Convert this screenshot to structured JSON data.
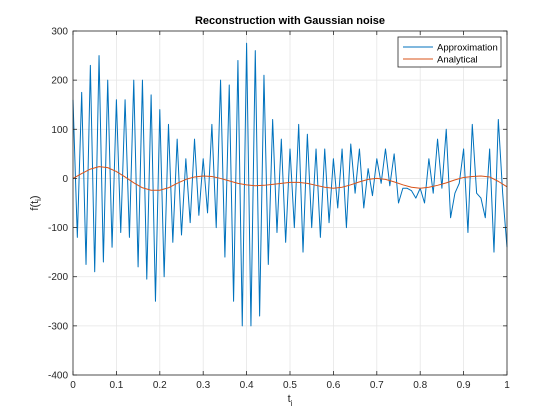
{
  "chart_data": {
    "type": "line",
    "title": "Reconstruction with Gaussian noise",
    "xlabel_main": "t",
    "xlabel_sub": "i",
    "ylabel_main": "f(t",
    "ylabel_sub": "i",
    "ylabel_close": ")",
    "xlim": [
      0,
      1
    ],
    "ylim": [
      -400,
      300
    ],
    "xticks": [
      0,
      0.1,
      0.2,
      0.3,
      0.4,
      0.5,
      0.6,
      0.7,
      0.8,
      0.9,
      1
    ],
    "xtick_labels": [
      "0",
      "0.1",
      "0.2",
      "0.3",
      "0.4",
      "0.5",
      "0.6",
      "0.7",
      "0.8",
      "0.9",
      "1"
    ],
    "yticks": [
      -400,
      -300,
      -200,
      -100,
      0,
      100,
      200,
      300
    ],
    "ytick_labels": [
      "-400",
      "-300",
      "-200",
      "-100",
      "0",
      "100",
      "200",
      "300"
    ],
    "grid": true,
    "legend_position": "top-right",
    "series": [
      {
        "name": "Approximation",
        "color": "#0072BD",
        "x": [
          0.0,
          0.01,
          0.02,
          0.03,
          0.04,
          0.05,
          0.06,
          0.07,
          0.08,
          0.09,
          0.1,
          0.11,
          0.12,
          0.13,
          0.14,
          0.15,
          0.16,
          0.17,
          0.18,
          0.19,
          0.2,
          0.21,
          0.22,
          0.23,
          0.24,
          0.25,
          0.26,
          0.27,
          0.28,
          0.29,
          0.3,
          0.31,
          0.32,
          0.33,
          0.34,
          0.35,
          0.36,
          0.37,
          0.38,
          0.39,
          0.4,
          0.41,
          0.42,
          0.43,
          0.44,
          0.45,
          0.46,
          0.47,
          0.48,
          0.49,
          0.5,
          0.51,
          0.52,
          0.53,
          0.54,
          0.55,
          0.56,
          0.57,
          0.58,
          0.59,
          0.6,
          0.61,
          0.62,
          0.63,
          0.64,
          0.65,
          0.66,
          0.67,
          0.68,
          0.69,
          0.7,
          0.71,
          0.72,
          0.73,
          0.74,
          0.75,
          0.76,
          0.77,
          0.78,
          0.79,
          0.8,
          0.81,
          0.82,
          0.83,
          0.84,
          0.85,
          0.86,
          0.87,
          0.88,
          0.89,
          0.9,
          0.91,
          0.92,
          0.93,
          0.94,
          0.95,
          0.96,
          0.97,
          0.98,
          0.99,
          1.0
        ],
        "y": [
          160,
          -120,
          175,
          -175,
          230,
          -190,
          250,
          -170,
          200,
          -140,
          160,
          -110,
          160,
          -120,
          200,
          -180,
          200,
          -205,
          170,
          -250,
          140,
          -200,
          110,
          -130,
          80,
          -115,
          40,
          -90,
          80,
          -75,
          40,
          -70,
          110,
          -100,
          200,
          -160,
          190,
          -250,
          240,
          -300,
          275,
          -300,
          260,
          -280,
          210,
          -175,
          120,
          -110,
          80,
          -130,
          60,
          -100,
          110,
          -150,
          90,
          -100,
          60,
          -120,
          60,
          -90,
          40,
          -60,
          60,
          -100,
          70,
          -30,
          60,
          -60,
          20,
          -35,
          40,
          -10,
          60,
          -15,
          50,
          -50,
          -20,
          -20,
          -25,
          -40,
          -20,
          -50,
          40,
          -30,
          80,
          -20,
          100,
          -80,
          -30,
          -10,
          60,
          -110,
          110,
          -30,
          -40,
          -80,
          60,
          -150,
          120,
          -30,
          -140
        ],
        "values_note": ""
      },
      {
        "name": "Analytical",
        "color": "#D95319",
        "x": [
          0.0,
          0.02,
          0.04,
          0.06,
          0.08,
          0.1,
          0.12,
          0.14,
          0.16,
          0.18,
          0.2,
          0.22,
          0.24,
          0.26,
          0.28,
          0.3,
          0.32,
          0.34,
          0.36,
          0.38,
          0.4,
          0.42,
          0.44,
          0.46,
          0.48,
          0.5,
          0.52,
          0.54,
          0.56,
          0.58,
          0.6,
          0.62,
          0.64,
          0.66,
          0.68,
          0.7,
          0.72,
          0.74,
          0.76,
          0.78,
          0.8,
          0.82,
          0.84,
          0.86,
          0.88,
          0.9,
          0.92,
          0.94,
          0.96,
          0.98,
          1.0
        ],
        "y": [
          0,
          10,
          19,
          24,
          22,
          14,
          3,
          -9,
          -19,
          -24,
          -24,
          -19,
          -10,
          -2,
          3,
          5,
          4,
          0,
          -5,
          -10,
          -13,
          -15,
          -14,
          -12,
          -10,
          -8,
          -8,
          -10,
          -14,
          -18,
          -20,
          -18,
          -13,
          -7,
          -2,
          0,
          -2,
          -7,
          -13,
          -18,
          -20,
          -18,
          -14,
          -9,
          -3,
          2,
          4,
          5,
          3,
          -6,
          -17
        ]
      }
    ]
  }
}
